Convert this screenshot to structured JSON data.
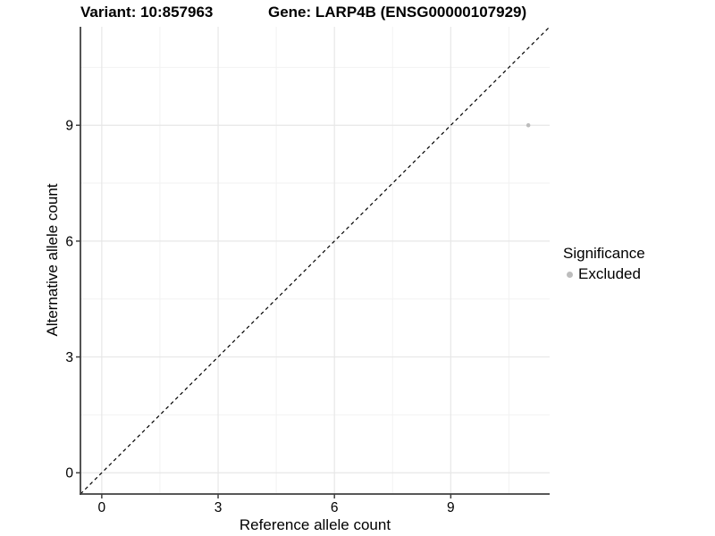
{
  "title": {
    "variant": "Variant: 10:857963",
    "gene": "Gene: LARP4B (ENSG00000107929)"
  },
  "chart_data": {
    "type": "scatter",
    "title": "Variant: 10:857963    Gene: LARP4B (ENSG00000107929)",
    "xlabel": "Reference allele count",
    "ylabel": "Alternative allele count",
    "xlim": [
      -0.55,
      11.55
    ],
    "ylim": [
      -0.55,
      11.55
    ],
    "x_ticks": [
      0,
      3,
      6,
      9
    ],
    "y_ticks": [
      0,
      3,
      6,
      9
    ],
    "x_minor_ticks": [
      1.5,
      4.5,
      7.5,
      10.5
    ],
    "y_minor_ticks": [
      1.5,
      4.5,
      7.5,
      10.5
    ],
    "grid": "major and minor, light gray on white",
    "identity_line": {
      "slope": 1,
      "intercept": 0,
      "style": "dashed",
      "color": "#000000"
    },
    "series": [
      {
        "name": "Excluded",
        "marker": "circle",
        "color": "#bdbdbd",
        "points": [
          {
            "x": 11,
            "y": 9
          }
        ]
      }
    ],
    "legend_position": "right"
  },
  "legend": {
    "title": "Significance",
    "items": [
      {
        "label": "Excluded",
        "color": "#bdbdbd",
        "marker": "circle"
      }
    ]
  },
  "colors": {
    "background": "#ffffff",
    "axis_line": "#404040",
    "grid_major": "#e7e7e7",
    "grid_minor": "#f2f2f2",
    "text": "#000000",
    "point": "#bdbdbd"
  }
}
